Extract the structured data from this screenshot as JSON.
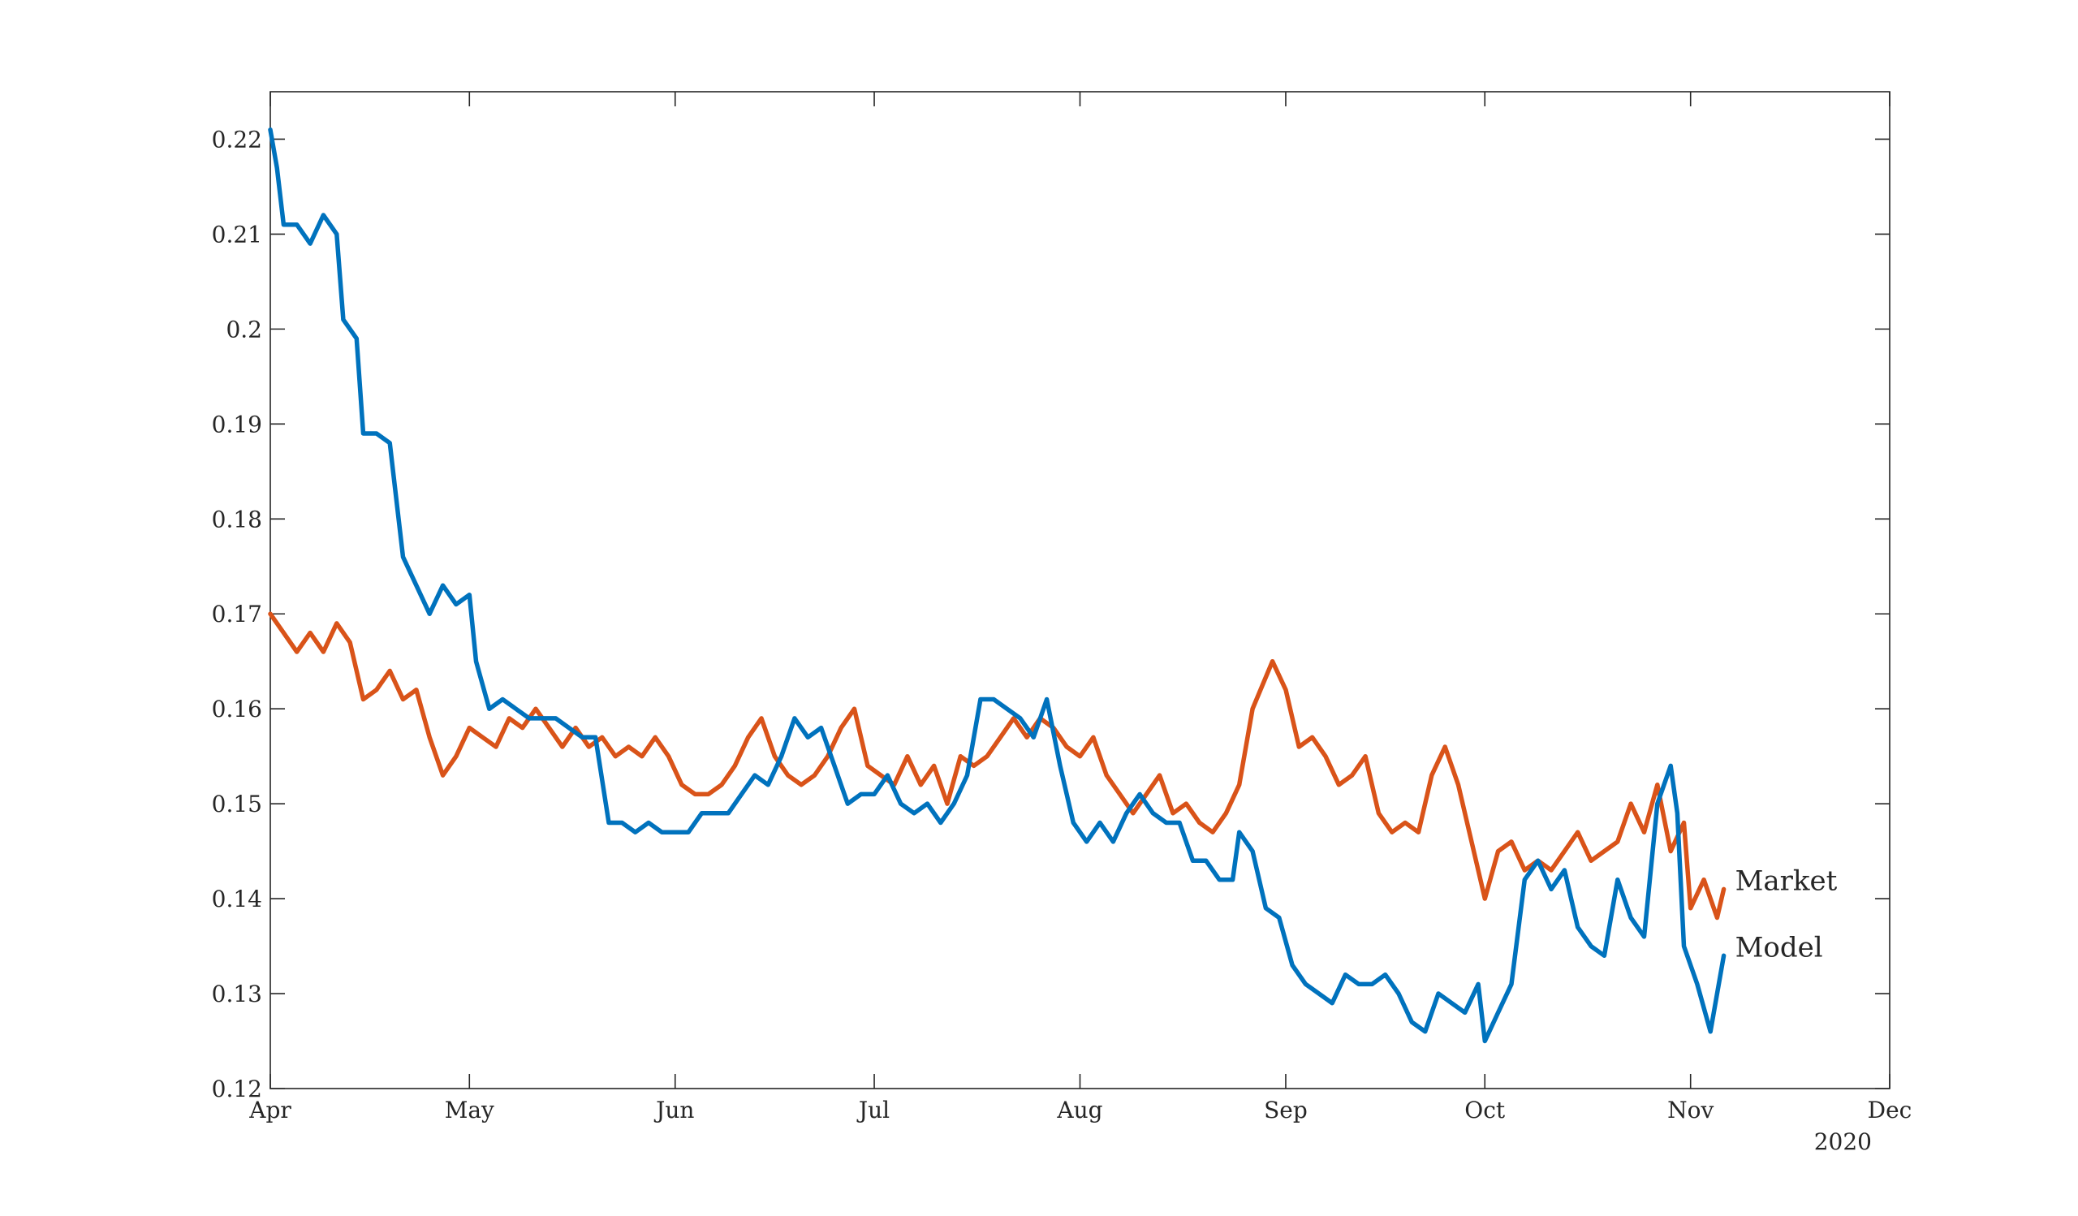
{
  "chart_data": {
    "type": "line",
    "title": "",
    "xlabel": "",
    "ylabel": "",
    "x_ticks": [
      "Apr",
      "May",
      "Jun",
      "Jul",
      "Aug",
      "Sep",
      "Oct",
      "Nov",
      "Dec"
    ],
    "x_tick_dates": [
      "2020-04-01",
      "2020-05-01",
      "2020-06-01",
      "2020-07-01",
      "2020-08-01",
      "2020-09-01",
      "2020-10-01",
      "2020-11-01",
      "2020-12-01"
    ],
    "x_year_label": "2020",
    "xlim": [
      "2020-04-01",
      "2020-12-01"
    ],
    "ylim": [
      0.12,
      0.225
    ],
    "y_ticks": [
      0.12,
      0.13,
      0.14,
      0.15,
      0.16,
      0.17,
      0.18,
      0.19,
      0.2,
      0.21,
      0.22
    ],
    "y_tick_labels": [
      "0.12",
      "0.13",
      "0.14",
      "0.15",
      "0.16",
      "0.17",
      "0.18",
      "0.19",
      "0.2",
      "0.21",
      "0.22"
    ],
    "grid": false,
    "series": [
      {
        "name": "Market",
        "color": "#D95319",
        "points": [
          [
            "2020-04-01",
            0.17
          ],
          [
            "2020-04-03",
            0.168
          ],
          [
            "2020-04-05",
            0.166
          ],
          [
            "2020-04-07",
            0.168
          ],
          [
            "2020-04-09",
            0.166
          ],
          [
            "2020-04-11",
            0.169
          ],
          [
            "2020-04-13",
            0.167
          ],
          [
            "2020-04-15",
            0.161
          ],
          [
            "2020-04-17",
            0.162
          ],
          [
            "2020-04-19",
            0.164
          ],
          [
            "2020-04-21",
            0.161
          ],
          [
            "2020-04-23",
            0.162
          ],
          [
            "2020-04-25",
            0.157
          ],
          [
            "2020-04-27",
            0.153
          ],
          [
            "2020-04-29",
            0.155
          ],
          [
            "2020-05-01",
            0.158
          ],
          [
            "2020-05-03",
            0.157
          ],
          [
            "2020-05-05",
            0.156
          ],
          [
            "2020-05-07",
            0.159
          ],
          [
            "2020-05-09",
            0.158
          ],
          [
            "2020-05-11",
            0.16
          ],
          [
            "2020-05-13",
            0.158
          ],
          [
            "2020-05-15",
            0.156
          ],
          [
            "2020-05-17",
            0.158
          ],
          [
            "2020-05-19",
            0.156
          ],
          [
            "2020-05-21",
            0.157
          ],
          [
            "2020-05-23",
            0.155
          ],
          [
            "2020-05-25",
            0.156
          ],
          [
            "2020-05-27",
            0.155
          ],
          [
            "2020-05-29",
            0.157
          ],
          [
            "2020-05-31",
            0.155
          ],
          [
            "2020-06-02",
            0.152
          ],
          [
            "2020-06-04",
            0.151
          ],
          [
            "2020-06-06",
            0.151
          ],
          [
            "2020-06-08",
            0.152
          ],
          [
            "2020-06-10",
            0.154
          ],
          [
            "2020-06-12",
            0.157
          ],
          [
            "2020-06-14",
            0.159
          ],
          [
            "2020-06-16",
            0.155
          ],
          [
            "2020-06-18",
            0.153
          ],
          [
            "2020-06-20",
            0.152
          ],
          [
            "2020-06-22",
            0.153
          ],
          [
            "2020-06-24",
            0.155
          ],
          [
            "2020-06-26",
            0.158
          ],
          [
            "2020-06-28",
            0.16
          ],
          [
            "2020-06-30",
            0.154
          ],
          [
            "2020-07-02",
            0.153
          ],
          [
            "2020-07-04",
            0.152
          ],
          [
            "2020-07-06",
            0.155
          ],
          [
            "2020-07-08",
            0.152
          ],
          [
            "2020-07-10",
            0.154
          ],
          [
            "2020-07-12",
            0.15
          ],
          [
            "2020-07-14",
            0.155
          ],
          [
            "2020-07-16",
            0.154
          ],
          [
            "2020-07-18",
            0.155
          ],
          [
            "2020-07-20",
            0.157
          ],
          [
            "2020-07-22",
            0.159
          ],
          [
            "2020-07-24",
            0.157
          ],
          [
            "2020-07-26",
            0.159
          ],
          [
            "2020-07-28",
            0.158
          ],
          [
            "2020-07-30",
            0.156
          ],
          [
            "2020-08-01",
            0.155
          ],
          [
            "2020-08-03",
            0.157
          ],
          [
            "2020-08-05",
            0.153
          ],
          [
            "2020-08-07",
            0.151
          ],
          [
            "2020-08-09",
            0.149
          ],
          [
            "2020-08-11",
            0.151
          ],
          [
            "2020-08-13",
            0.153
          ],
          [
            "2020-08-15",
            0.149
          ],
          [
            "2020-08-17",
            0.15
          ],
          [
            "2020-08-19",
            0.148
          ],
          [
            "2020-08-21",
            0.147
          ],
          [
            "2020-08-23",
            0.149
          ],
          [
            "2020-08-25",
            0.152
          ],
          [
            "2020-08-27",
            0.16
          ],
          [
            "2020-08-30",
            0.165
          ],
          [
            "2020-09-01",
            0.162
          ],
          [
            "2020-09-03",
            0.156
          ],
          [
            "2020-09-05",
            0.157
          ],
          [
            "2020-09-07",
            0.155
          ],
          [
            "2020-09-09",
            0.152
          ],
          [
            "2020-09-11",
            0.153
          ],
          [
            "2020-09-13",
            0.155
          ],
          [
            "2020-09-15",
            0.149
          ],
          [
            "2020-09-17",
            0.147
          ],
          [
            "2020-09-19",
            0.148
          ],
          [
            "2020-09-21",
            0.147
          ],
          [
            "2020-09-23",
            0.153
          ],
          [
            "2020-09-25",
            0.156
          ],
          [
            "2020-09-27",
            0.152
          ],
          [
            "2020-09-29",
            0.146
          ],
          [
            "2020-10-01",
            0.14
          ],
          [
            "2020-10-03",
            0.145
          ],
          [
            "2020-10-05",
            0.146
          ],
          [
            "2020-10-07",
            0.143
          ],
          [
            "2020-10-09",
            0.144
          ],
          [
            "2020-10-11",
            0.143
          ],
          [
            "2020-10-13",
            0.145
          ],
          [
            "2020-10-15",
            0.147
          ],
          [
            "2020-10-17",
            0.144
          ],
          [
            "2020-10-19",
            0.145
          ],
          [
            "2020-10-21",
            0.146
          ],
          [
            "2020-10-23",
            0.15
          ],
          [
            "2020-10-25",
            0.147
          ],
          [
            "2020-10-27",
            0.152
          ],
          [
            "2020-10-29",
            0.145
          ],
          [
            "2020-10-31",
            0.148
          ],
          [
            "2020-11-01",
            0.139
          ],
          [
            "2020-11-03",
            0.142
          ],
          [
            "2020-11-05",
            0.138
          ],
          [
            "2020-11-06",
            0.141
          ]
        ]
      },
      {
        "name": "Model",
        "color": "#0072BD",
        "points": [
          [
            "2020-04-01",
            0.221
          ],
          [
            "2020-04-02",
            0.217
          ],
          [
            "2020-04-03",
            0.211
          ],
          [
            "2020-04-05",
            0.211
          ],
          [
            "2020-04-07",
            0.209
          ],
          [
            "2020-04-09",
            0.212
          ],
          [
            "2020-04-11",
            0.21
          ],
          [
            "2020-04-12",
            0.201
          ],
          [
            "2020-04-14",
            0.199
          ],
          [
            "2020-04-15",
            0.189
          ],
          [
            "2020-04-17",
            0.189
          ],
          [
            "2020-04-19",
            0.188
          ],
          [
            "2020-04-21",
            0.176
          ],
          [
            "2020-04-23",
            0.173
          ],
          [
            "2020-04-25",
            0.17
          ],
          [
            "2020-04-27",
            0.173
          ],
          [
            "2020-04-29",
            0.171
          ],
          [
            "2020-05-01",
            0.172
          ],
          [
            "2020-05-02",
            0.165
          ],
          [
            "2020-05-04",
            0.16
          ],
          [
            "2020-05-06",
            0.161
          ],
          [
            "2020-05-08",
            0.16
          ],
          [
            "2020-05-10",
            0.159
          ],
          [
            "2020-05-12",
            0.159
          ],
          [
            "2020-05-14",
            0.159
          ],
          [
            "2020-05-16",
            0.158
          ],
          [
            "2020-05-18",
            0.157
          ],
          [
            "2020-05-20",
            0.157
          ],
          [
            "2020-05-22",
            0.148
          ],
          [
            "2020-05-24",
            0.148
          ],
          [
            "2020-05-26",
            0.147
          ],
          [
            "2020-05-28",
            0.148
          ],
          [
            "2020-05-30",
            0.147
          ],
          [
            "2020-06-01",
            0.147
          ],
          [
            "2020-06-03",
            0.147
          ],
          [
            "2020-06-05",
            0.149
          ],
          [
            "2020-06-07",
            0.149
          ],
          [
            "2020-06-09",
            0.149
          ],
          [
            "2020-06-11",
            0.151
          ],
          [
            "2020-06-13",
            0.153
          ],
          [
            "2020-06-15",
            0.152
          ],
          [
            "2020-06-17",
            0.155
          ],
          [
            "2020-06-19",
            0.159
          ],
          [
            "2020-06-21",
            0.157
          ],
          [
            "2020-06-23",
            0.158
          ],
          [
            "2020-06-25",
            0.154
          ],
          [
            "2020-06-27",
            0.15
          ],
          [
            "2020-06-29",
            0.151
          ],
          [
            "2020-07-01",
            0.151
          ],
          [
            "2020-07-03",
            0.153
          ],
          [
            "2020-07-05",
            0.15
          ],
          [
            "2020-07-07",
            0.149
          ],
          [
            "2020-07-09",
            0.15
          ],
          [
            "2020-07-11",
            0.148
          ],
          [
            "2020-07-13",
            0.15
          ],
          [
            "2020-07-15",
            0.153
          ],
          [
            "2020-07-17",
            0.161
          ],
          [
            "2020-07-19",
            0.161
          ],
          [
            "2020-07-21",
            0.16
          ],
          [
            "2020-07-23",
            0.159
          ],
          [
            "2020-07-25",
            0.157
          ],
          [
            "2020-07-27",
            0.161
          ],
          [
            "2020-07-29",
            0.154
          ],
          [
            "2020-07-31",
            0.148
          ],
          [
            "2020-08-02",
            0.146
          ],
          [
            "2020-08-04",
            0.148
          ],
          [
            "2020-08-06",
            0.146
          ],
          [
            "2020-08-08",
            0.149
          ],
          [
            "2020-08-10",
            0.151
          ],
          [
            "2020-08-12",
            0.149
          ],
          [
            "2020-08-14",
            0.148
          ],
          [
            "2020-08-16",
            0.148
          ],
          [
            "2020-08-18",
            0.144
          ],
          [
            "2020-08-20",
            0.144
          ],
          [
            "2020-08-22",
            0.142
          ],
          [
            "2020-08-24",
            0.142
          ],
          [
            "2020-08-25",
            0.147
          ],
          [
            "2020-08-27",
            0.145
          ],
          [
            "2020-08-29",
            0.139
          ],
          [
            "2020-08-31",
            0.138
          ],
          [
            "2020-09-02",
            0.133
          ],
          [
            "2020-09-04",
            0.131
          ],
          [
            "2020-09-06",
            0.13
          ],
          [
            "2020-09-08",
            0.129
          ],
          [
            "2020-09-10",
            0.132
          ],
          [
            "2020-09-12",
            0.131
          ],
          [
            "2020-09-14",
            0.131
          ],
          [
            "2020-09-16",
            0.132
          ],
          [
            "2020-09-18",
            0.13
          ],
          [
            "2020-09-20",
            0.127
          ],
          [
            "2020-09-22",
            0.126
          ],
          [
            "2020-09-24",
            0.13
          ],
          [
            "2020-09-26",
            0.129
          ],
          [
            "2020-09-28",
            0.128
          ],
          [
            "2020-09-30",
            0.131
          ],
          [
            "2020-10-01",
            0.125
          ],
          [
            "2020-10-03",
            0.128
          ],
          [
            "2020-10-05",
            0.131
          ],
          [
            "2020-10-07",
            0.142
          ],
          [
            "2020-10-09",
            0.144
          ],
          [
            "2020-10-11",
            0.141
          ],
          [
            "2020-10-13",
            0.143
          ],
          [
            "2020-10-15",
            0.137
          ],
          [
            "2020-10-17",
            0.135
          ],
          [
            "2020-10-19",
            0.134
          ],
          [
            "2020-10-21",
            0.142
          ],
          [
            "2020-10-23",
            0.138
          ],
          [
            "2020-10-25",
            0.136
          ],
          [
            "2020-10-27",
            0.15
          ],
          [
            "2020-10-29",
            0.154
          ],
          [
            "2020-10-30",
            0.149
          ],
          [
            "2020-10-31",
            0.135
          ],
          [
            "2020-11-02",
            0.131
          ],
          [
            "2020-11-04",
            0.126
          ],
          [
            "2020-11-06",
            0.134
          ]
        ]
      }
    ]
  }
}
